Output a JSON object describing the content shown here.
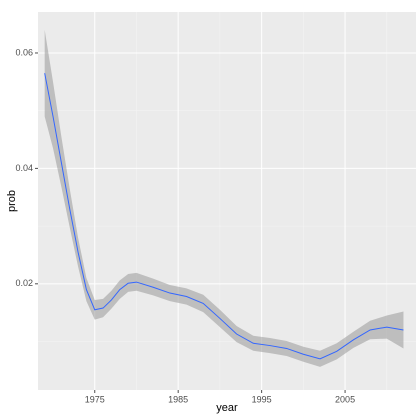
{
  "chart_data": {
    "type": "smooth",
    "x_label": "year",
    "y_label": "prob",
    "x": [
      1969,
      1970,
      1971,
      1972,
      1973,
      1974,
      1975,
      1976,
      1977,
      1978,
      1979,
      1980,
      1982,
      1984,
      1986,
      1988,
      1990,
      1992,
      1994,
      1996,
      1998,
      2000,
      2002,
      2004,
      2006,
      2008,
      2010,
      2012
    ],
    "values": [
      0.0565,
      0.049,
      0.041,
      0.033,
      0.0255,
      0.019,
      0.0155,
      0.0158,
      0.0172,
      0.019,
      0.0201,
      0.0203,
      0.0194,
      0.0184,
      0.0178,
      0.0166,
      0.014,
      0.0113,
      0.0097,
      0.0093,
      0.0088,
      0.0078,
      0.007,
      0.0083,
      0.0103,
      0.012,
      0.0125,
      0.012
    ],
    "upper": [
      0.064,
      0.055,
      0.0455,
      0.0365,
      0.028,
      0.021,
      0.0172,
      0.0174,
      0.0188,
      0.0206,
      0.0217,
      0.0219,
      0.0209,
      0.0198,
      0.0192,
      0.0181,
      0.0155,
      0.0127,
      0.011,
      0.0106,
      0.0101,
      0.0091,
      0.0084,
      0.0097,
      0.0117,
      0.0136,
      0.0145,
      0.0152
    ],
    "lower": [
      0.049,
      0.0435,
      0.0368,
      0.0298,
      0.023,
      0.017,
      0.0138,
      0.0142,
      0.0157,
      0.0174,
      0.0186,
      0.0188,
      0.018,
      0.017,
      0.0164,
      0.0151,
      0.0125,
      0.0099,
      0.0084,
      0.008,
      0.0075,
      0.0065,
      0.0056,
      0.0069,
      0.0089,
      0.0104,
      0.0105,
      0.0088
    ],
    "color": "#3366ff",
    "band_color": "#999999",
    "xlim": [
      1968.2,
      2013.5
    ],
    "xticks": [
      1975,
      1985,
      1995,
      2005
    ],
    "minor_xticks": [
      1980,
      1990,
      2000,
      2010
    ],
    "ylim": [
      0.0016,
      0.0671
    ],
    "yticks": [
      0.02,
      0.04,
      0.06
    ],
    "minor_yticks": [
      0.01,
      0.03,
      0.05
    ],
    "grid": true
  }
}
